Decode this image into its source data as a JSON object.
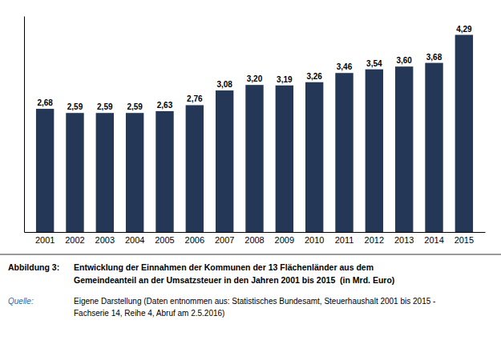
{
  "chart_data": {
    "type": "bar",
    "categories": [
      "2001",
      "2002",
      "2003",
      "2004",
      "2005",
      "2006",
      "2007",
      "2008",
      "2009",
      "2010",
      "2011",
      "2012",
      "2013",
      "2014",
      "2015"
    ],
    "values": [
      2.68,
      2.59,
      2.59,
      2.59,
      2.63,
      2.76,
      3.08,
      3.2,
      3.19,
      3.26,
      3.46,
      3.54,
      3.6,
      3.68,
      4.29
    ],
    "value_labels": [
      "2,68",
      "2,59",
      "2,59",
      "2,59",
      "2,63",
      "2,76",
      "3,08",
      "3,20",
      "3,19",
      "3,26",
      "3,46",
      "3,54",
      "3,60",
      "3,68",
      "4,29"
    ],
    "data_labels": true,
    "color": "#243757",
    "ylim": [
      0,
      4.7
    ],
    "tick_labels": "x",
    "grid": false,
    "annotations": [
      "Abbildung 3:",
      "Entwicklung der Einnahmen der Kommunen der 13 Flächenländer aus dem",
      "Gemeindeanteil an der Umsatzsteuer in den Jahren 2001 bis 2015  (in Mrd. Euro)",
      "Quelle:",
      "Eigene Darstellung (Daten entnommen aus: Statistisches Bundesamt, Steuerhaushalt 2001 bis 2015 -",
      "Fachserie 14, Reihe 4, Abruf am 2.5.2016)"
    ]
  }
}
